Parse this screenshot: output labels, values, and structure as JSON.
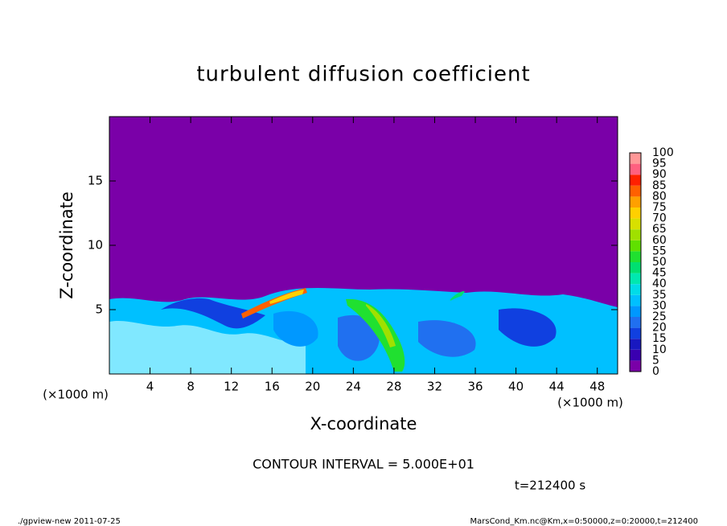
{
  "chart_data": {
    "type": "contour",
    "title": "turbulent diffusion coefficient",
    "xlabel": "X-coordinate",
    "ylabel": "Z-coordinate",
    "xunit": "(×1000 m)",
    "yunit": "(×1000 m)",
    "xlim": [
      0,
      50
    ],
    "xticks": [
      4,
      8,
      12,
      16,
      20,
      24,
      28,
      32,
      36,
      40,
      44,
      48
    ],
    "ylim": [
      0,
      20
    ],
    "yticks": [
      5,
      10,
      15
    ],
    "levels": [
      0,
      5,
      10,
      15,
      20,
      25,
      30,
      35,
      40,
      45,
      50,
      55,
      60,
      65,
      70,
      75,
      80,
      85,
      90,
      95,
      100
    ],
    "colors": [
      "#7a00a8",
      "#3a00b0",
      "#1818c0",
      "#1040e0",
      "#2070f0",
      "#0098ff",
      "#00c0ff",
      "#00dce8",
      "#00e8b0",
      "#00e070",
      "#20e030",
      "#60e000",
      "#a0e000",
      "#d8e000",
      "#ffd000",
      "#ffa000",
      "#ff6000",
      "#ff2000",
      "#ff6080",
      "#ff9898"
    ],
    "annotation": "CONTOUR INTERVAL = 5.000E+01",
    "time": "t=212400 s",
    "footer_left": "./gpview-new  2011-07-25",
    "footer_right": "MarsCond_Km.nc@Km,x=0:50000,z=0:20000,t=212400"
  }
}
